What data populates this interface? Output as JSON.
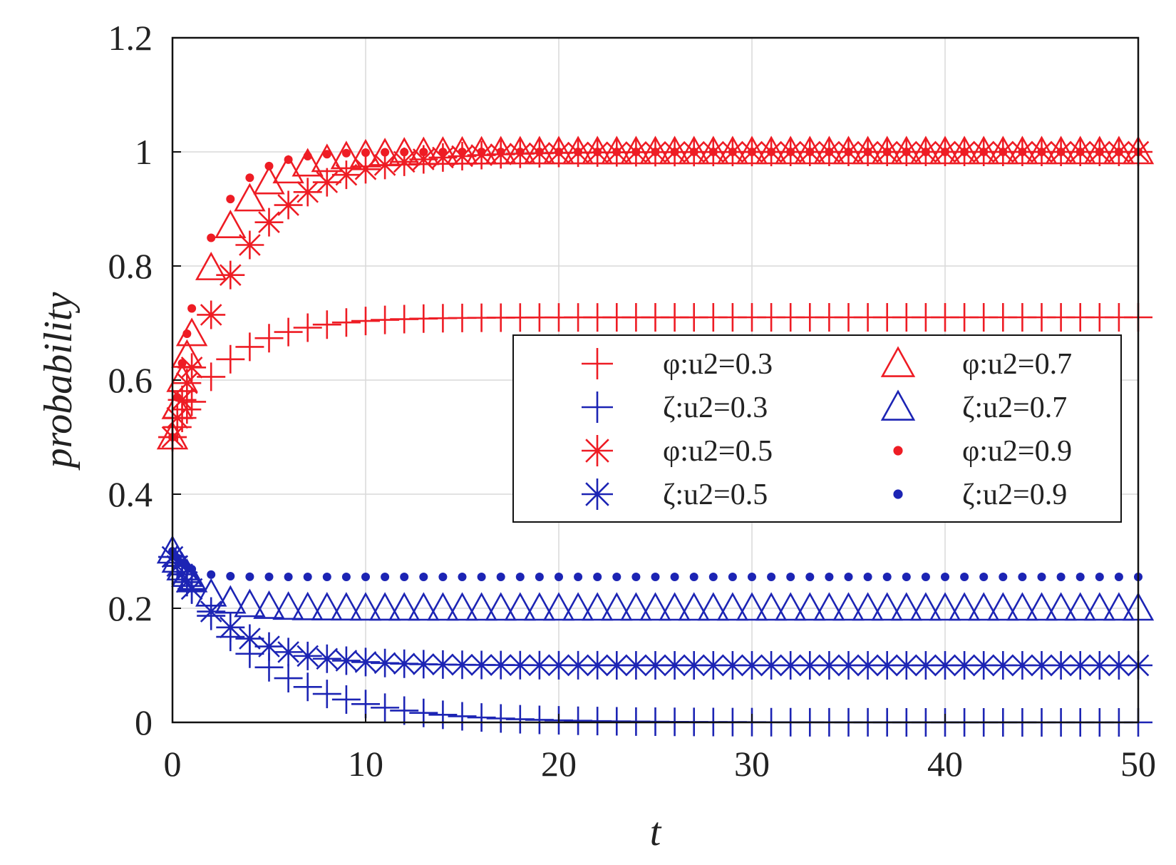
{
  "chart_data": {
    "type": "scatter",
    "title": "",
    "xlabel": "t",
    "ylabel": "probability",
    "xlim": [
      0,
      50
    ],
    "ylim": [
      0,
      1.2
    ],
    "xticks": [
      0,
      10,
      20,
      30,
      40,
      50
    ],
    "xtick_labels": [
      "0",
      "10",
      "20",
      "30",
      "40",
      "50"
    ],
    "yticks": [
      0,
      0.2,
      0.4,
      0.6,
      0.8,
      1.0,
      1.2
    ],
    "ytick_labels": [
      "0",
      "0.2",
      "0.4",
      "0.6",
      "0.8",
      "1",
      "1.2"
    ],
    "grid": true,
    "legend_position": "center-right",
    "colors": {
      "phi": "#ee1c24",
      "zeta": "#1c24b4"
    },
    "x_step": 1,
    "series": [
      {
        "name": "φ:u2=0.3",
        "group": "phi",
        "marker": "plus",
        "start": 0.5,
        "final": 0.71,
        "rate": 0.35
      },
      {
        "name": "ζ:u2=0.3",
        "group": "zeta",
        "marker": "plus",
        "start": 0.29,
        "final": 0.0,
        "rate": 0.22
      },
      {
        "name": "φ:u2=0.5",
        "group": "phi",
        "marker": "asterisk",
        "start": 0.5,
        "final": 1.0,
        "rate": 0.28
      },
      {
        "name": "ζ:u2=0.5",
        "group": "zeta",
        "marker": "asterisk",
        "start": 0.29,
        "final": 0.1,
        "rate": 0.35
      },
      {
        "name": "φ:u2=0.7",
        "group": "phi",
        "marker": "triangle",
        "start": 0.5,
        "final": 1.0,
        "rate": 0.45
      },
      {
        "name": "ζ:u2=0.7",
        "group": "zeta",
        "marker": "triangle",
        "start": 0.3,
        "final": 0.2,
        "rate": 0.7
      },
      {
        "name": "φ:u2=0.9",
        "group": "phi",
        "marker": "dot",
        "start": 0.5,
        "final": 1.0,
        "rate": 0.6
      },
      {
        "name": "ζ:u2=0.9",
        "group": "zeta",
        "marker": "dot",
        "start": 0.3,
        "final": 0.255,
        "rate": 1.2
      }
    ]
  }
}
